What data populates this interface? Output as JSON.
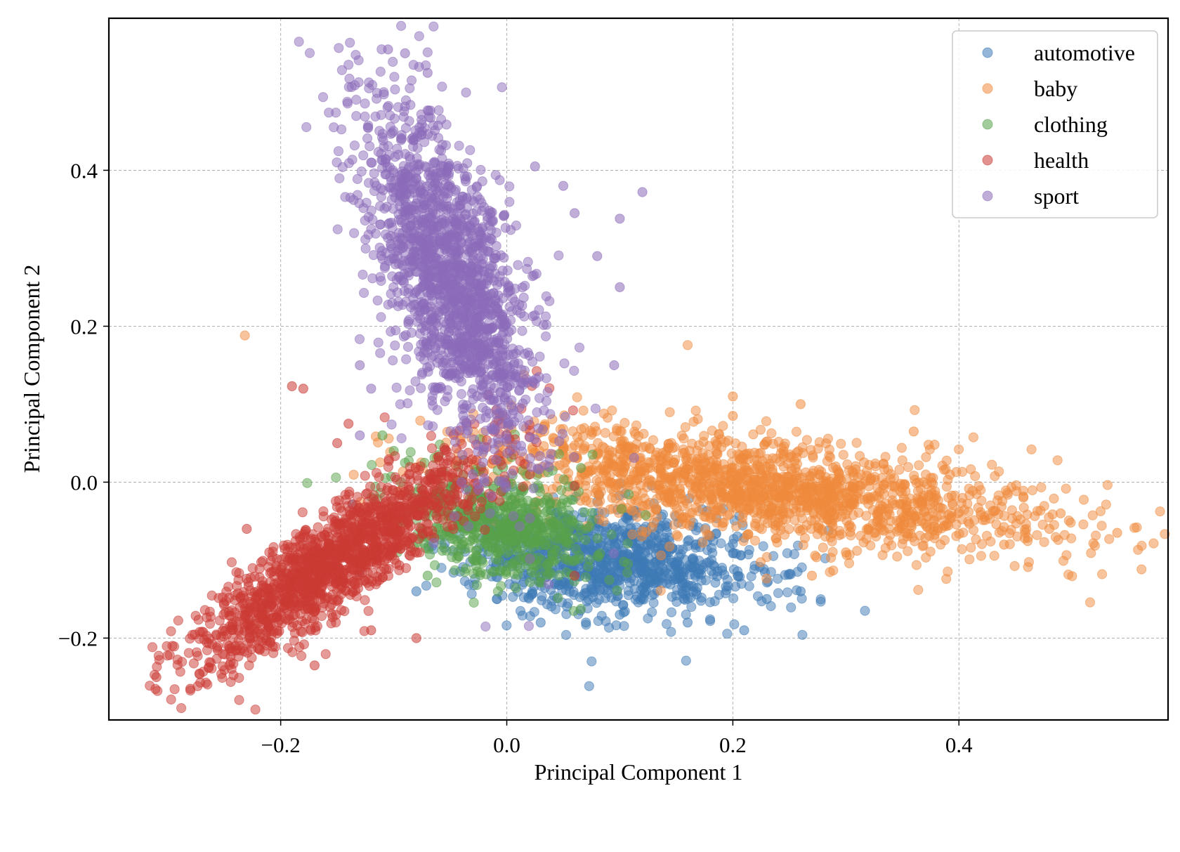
{
  "chart_data": {
    "type": "scatter",
    "title": "",
    "xlabel": "Principal Component 1",
    "ylabel": "Principal Component 2",
    "xlim": [
      -0.352,
      0.585
    ],
    "ylim": [
      -0.305,
      0.595
    ],
    "xticks": [
      -0.2,
      0.0,
      0.2,
      0.4
    ],
    "yticks": [
      -0.2,
      0.0,
      0.2,
      0.4
    ],
    "xtick_labels": [
      "−0.2",
      "0.0",
      "0.2",
      "0.4"
    ],
    "ytick_labels": [
      "−0.2",
      "0.0",
      "0.2",
      "0.4"
    ],
    "grid": true,
    "legend_position": "top-right",
    "series": [
      {
        "name": "automotive",
        "color": "#3e7ab5",
        "cluster": {
          "center": [
            0.09,
            -0.1
          ],
          "spread": [
            0.065,
            0.032
          ],
          "tilt": -0.15,
          "count": 950
        },
        "outliers": [
          [
            0.21,
            -0.19
          ],
          [
            0.26,
            -0.14
          ],
          [
            0.23,
            -0.15
          ],
          [
            0.03,
            -0.18
          ],
          [
            0.07,
            -0.18
          ],
          [
            0.16,
            -0.18
          ],
          [
            -0.08,
            -0.14
          ],
          [
            0.1,
            -0.17
          ]
        ]
      },
      {
        "name": "baby",
        "color": "#f08a3b",
        "cluster": {
          "center": [
            0.23,
            -0.01
          ],
          "spread": [
            0.12,
            0.03
          ],
          "tilt": -0.18,
          "count": 1600
        },
        "outliers": [
          [
            0.54,
            -0.065
          ],
          [
            0.49,
            -0.04
          ],
          [
            0.48,
            -0.06
          ],
          [
            0.27,
            -0.12
          ],
          [
            0.3,
            -0.09
          ],
          [
            0.26,
            0.1
          ],
          [
            0.2,
            0.11
          ],
          [
            0.36,
            0.065
          ],
          [
            0.44,
            -0.08
          ],
          [
            0.2,
            0.085
          ]
        ]
      },
      {
        "name": "clothing",
        "color": "#57a24a",
        "cluster": {
          "center": [
            -0.005,
            -0.055
          ],
          "spread": [
            0.045,
            0.03
          ],
          "tilt": -0.4,
          "count": 650
        },
        "outliers": [
          [
            -0.1,
            0.04
          ],
          [
            -0.11,
            0.06
          ],
          [
            -0.07,
            -0.12
          ],
          [
            0.06,
            -0.1
          ],
          [
            -0.06,
            0.035
          ],
          [
            0.07,
            -0.06
          ]
        ]
      },
      {
        "name": "health",
        "color": "#cb3a33",
        "cluster": {
          "center": [
            -0.15,
            -0.1
          ],
          "spread": [
            0.085,
            0.022
          ],
          "tilt": 0.82,
          "count": 1500
        },
        "outliers": [
          [
            -0.19,
            0.123
          ],
          [
            -0.18,
            0.12
          ],
          [
            -0.08,
            -0.2
          ],
          [
            -0.17,
            -0.235
          ],
          [
            -0.31,
            -0.25
          ],
          [
            -0.28,
            -0.265
          ],
          [
            0.06,
            -0.12
          ],
          [
            0.06,
            -0.005
          ],
          [
            -0.14,
            0.075
          ],
          [
            -0.15,
            0.05
          ],
          [
            -0.23,
            -0.06
          ],
          [
            -0.12,
            -0.19
          ]
        ]
      },
      {
        "name": "sport",
        "color": "#8c6bba",
        "cluster": {
          "center": [
            -0.05,
            0.26
          ],
          "spread": [
            0.028,
            0.11
          ],
          "tilt": 0.22,
          "count": 1700
        },
        "outliers": [
          [
            -0.105,
            0.555
          ],
          [
            -0.09,
            0.55
          ],
          [
            -0.07,
            0.525
          ],
          [
            0.12,
            0.372
          ],
          [
            0.1,
            0.338
          ],
          [
            0.05,
            0.38
          ],
          [
            0.06,
            0.345
          ],
          [
            0.025,
            0.405
          ],
          [
            -0.13,
            0.15
          ],
          [
            -0.12,
            0.12
          ],
          [
            -0.13,
            0.06
          ],
          [
            0.08,
            0.29
          ],
          [
            0.1,
            0.25
          ],
          [
            0.095,
            0.15
          ],
          [
            -0.12,
            0.41
          ],
          [
            -0.02,
            0.0
          ],
          [
            -0.03,
            0.01
          ],
          [
            -0.04,
            0.0
          ],
          [
            -0.025,
            -0.01
          ]
        ]
      }
    ]
  }
}
